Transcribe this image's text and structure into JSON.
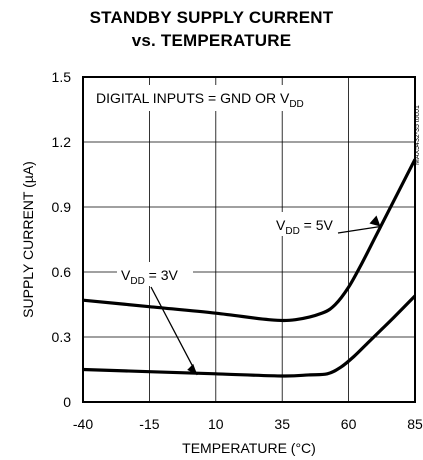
{
  "title_line1": "STANDBY SUPPLY CURRENT",
  "title_line2": "vs. TEMPERATURE",
  "chart_data": {
    "type": "line",
    "title": "STANDBY SUPPLY CURRENT vs. TEMPERATURE",
    "xlabel": "TEMPERATURE (°C)",
    "ylabel": "SUPPLY CURRENT (µA)",
    "xlim": [
      -40,
      85
    ],
    "ylim": [
      0,
      1.5
    ],
    "xticks": [
      "-40",
      "-15",
      "10",
      "35",
      "60",
      "85"
    ],
    "yticks": [
      "0",
      "0.3",
      "0.6",
      "0.9",
      "1.2",
      "1.5"
    ],
    "grid": true,
    "condition": "DIGITAL INPUTS = GND OR V",
    "condition_sub": "DD",
    "side_code": "MAX5432-35 toc01",
    "series": [
      {
        "label_main": "V",
        "label_sub": "DD",
        "label_tail": " = 5V",
        "x": [
          -40,
          -15,
          10,
          30,
          40,
          50,
          55,
          60,
          65,
          70,
          75,
          80,
          85
        ],
        "y": [
          0.47,
          0.44,
          0.41,
          0.38,
          0.38,
          0.41,
          0.45,
          0.53,
          0.64,
          0.76,
          0.88,
          1.0,
          1.12
        ]
      },
      {
        "label_main": "V",
        "label_sub": "DD",
        "label_tail": " = 3V",
        "x": [
          -40,
          -15,
          10,
          35,
          45,
          52,
          57,
          62,
          67,
          72,
          77,
          85
        ],
        "y": [
          0.15,
          0.14,
          0.13,
          0.12,
          0.125,
          0.13,
          0.16,
          0.21,
          0.27,
          0.33,
          0.39,
          0.49
        ]
      }
    ]
  }
}
